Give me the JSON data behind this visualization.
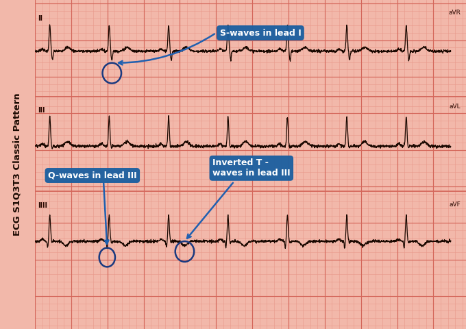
{
  "bg_ecg": "#f2b8aa",
  "grid_minor_color": "#e8998a",
  "grid_major_color": "#d4665a",
  "ecg_color": "#1a0800",
  "annotation1_text": "S-waves in lead I",
  "annotation2_text": "Q-waves in lead III",
  "annotation3_text": "Inverted T -\nwaves in lead III",
  "annotation_bg": "#1a5fa0",
  "annotation_fg": "#ffffff",
  "circle_color": "#1a3a80",
  "arrow_color": "#2060b0",
  "sidebar_text": "ECG S1Q3T3 Classic Pattern",
  "sidebar_bg": "#b07060",
  "sidebar_text_color": "#1a0800",
  "label_color": "#2a0800",
  "row1_label": "II",
  "row2_label": "III",
  "row3_label": "IIII",
  "label_aVR": "aVR",
  "label_aVL": "aVL",
  "label_aVF": "aVF"
}
